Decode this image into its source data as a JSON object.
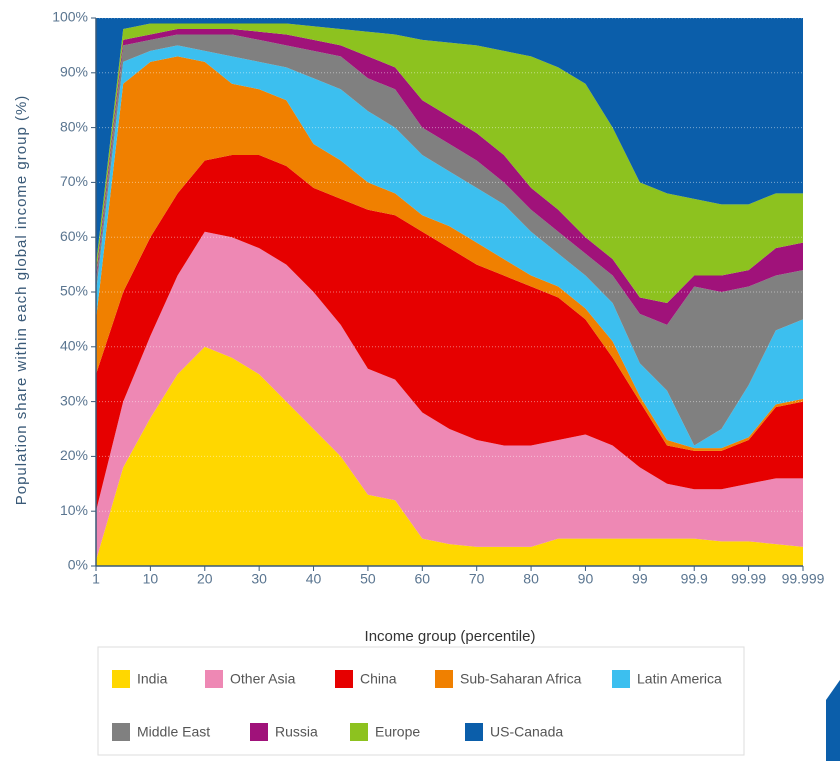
{
  "chart_data": {
    "type": "stacked-area",
    "x_label": "Income group (percentile)",
    "y_label": "Population share within each global income group (%)",
    "categories": [
      "1",
      null,
      "10",
      null,
      "20",
      null,
      "30",
      null,
      "40",
      null,
      "50",
      null,
      "60",
      null,
      "70",
      null,
      "80",
      null,
      "90",
      null,
      "99",
      null,
      "99.9",
      null,
      "99.99",
      null,
      "99.999"
    ],
    "ylim": [
      0,
      100
    ],
    "yticks": [
      {
        "value": 0,
        "label": "0%"
      },
      {
        "value": 10,
        "label": "10%"
      },
      {
        "value": 20,
        "label": "20%"
      },
      {
        "value": 30,
        "label": "30%"
      },
      {
        "value": 40,
        "label": "40%"
      },
      {
        "value": 50,
        "label": "50%"
      },
      {
        "value": 60,
        "label": "60%"
      },
      {
        "value": 70,
        "label": "70%"
      },
      {
        "value": 80,
        "label": "80%"
      },
      {
        "value": 90,
        "label": "90%"
      },
      {
        "value": 100,
        "label": "100%"
      }
    ],
    "grid": true,
    "series": [
      {
        "name": "India",
        "color": "#ffd700",
        "values": [
          1,
          18,
          27,
          35,
          40,
          38,
          35,
          30,
          25,
          20,
          13,
          12,
          5,
          4,
          3.5,
          3.5,
          3.5,
          5,
          5,
          5,
          5,
          5,
          5,
          4.5,
          4.5,
          4,
          3.5
        ]
      },
      {
        "name": "Other Asia",
        "color": "#ee88b4",
        "values": [
          9,
          12,
          15,
          18,
          21,
          22,
          23,
          25,
          25,
          24,
          23,
          22,
          23,
          21,
          19.5,
          18.5,
          18.5,
          18,
          19,
          17,
          13,
          10,
          9,
          9.5,
          10.5,
          12,
          12.5
        ]
      },
      {
        "name": "China",
        "color": "#e60000",
        "values": [
          25,
          20,
          18,
          15,
          13,
          15,
          17,
          18,
          19,
          23,
          29,
          30,
          33,
          33,
          32,
          31,
          29,
          26,
          21,
          16,
          12,
          7,
          7,
          7,
          8,
          13,
          14
        ]
      },
      {
        "name": "Sub-Saharan Africa",
        "color": "#f08000",
        "values": [
          10,
          38,
          32,
          25,
          18,
          13,
          12,
          12,
          8,
          7,
          5,
          4,
          3,
          4,
          4,
          3,
          2,
          2,
          2,
          3,
          1,
          1,
          0.5,
          0.5,
          0.5,
          0.5,
          0.5
        ]
      },
      {
        "name": "Latin America",
        "color": "#3cbfef",
        "values": [
          5,
          4,
          2,
          2,
          2,
          5,
          5,
          6,
          12,
          13,
          13,
          12,
          11,
          10,
          10,
          10,
          8,
          6,
          6,
          7,
          6,
          9,
          0.5,
          3.5,
          9.5,
          13.5,
          14.5
        ]
      },
      {
        "name": "Middle East",
        "color": "#808080",
        "values": [
          2,
          3,
          2,
          2,
          3,
          4,
          4,
          4,
          5,
          6,
          6,
          7,
          5,
          5,
          5,
          4,
          4,
          4,
          4,
          5,
          9,
          12,
          29,
          25,
          18,
          10,
          9
        ]
      },
      {
        "name": "Russia",
        "color": "#a0127a",
        "values": [
          1,
          1,
          1,
          1,
          1,
          1,
          1.5,
          2,
          2,
          2,
          4,
          4,
          5,
          5,
          5,
          5,
          4,
          4,
          3,
          3,
          3,
          4,
          2,
          3,
          3,
          5,
          5
        ]
      },
      {
        "name": "Europe",
        "color": "#8dc21f",
        "values": [
          2,
          2,
          2,
          1,
          1,
          1,
          1.5,
          2,
          2.5,
          3,
          4.5,
          6,
          11,
          13.5,
          16,
          19,
          24,
          26,
          28,
          24,
          21,
          20,
          14,
          13,
          12,
          10,
          9
        ]
      },
      {
        "name": "US-Canada",
        "color": "#0b5eaa",
        "values": [
          45,
          2,
          1,
          1,
          1,
          1,
          1,
          1,
          1.5,
          2,
          2.5,
          3,
          4,
          4.5,
          5,
          6,
          7,
          9,
          12,
          20,
          30,
          32,
          33,
          34,
          34,
          32,
          32
        ]
      }
    ]
  }
}
